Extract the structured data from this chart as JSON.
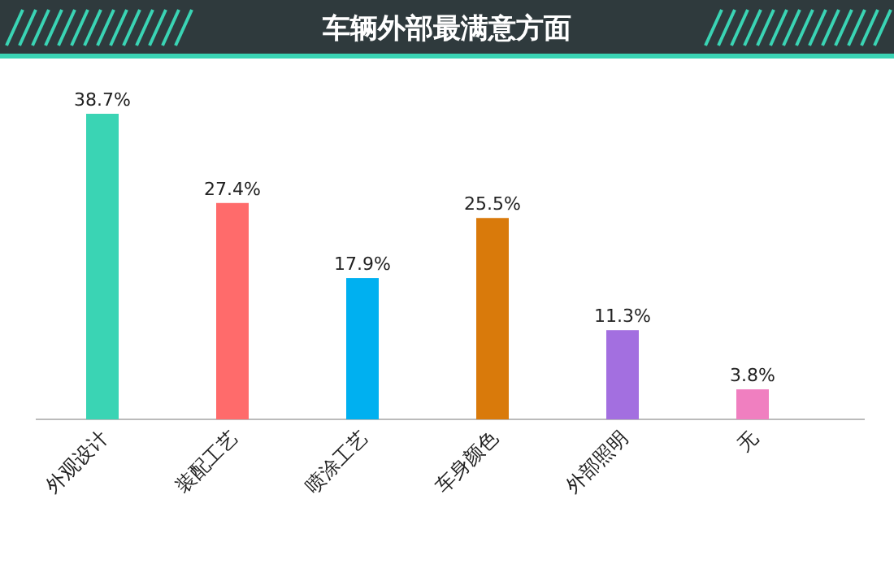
{
  "chart_data": {
    "type": "bar",
    "title": "车辆外部最满意方面",
    "categories": [
      "外观设计",
      "装配工艺",
      "喷涂工艺",
      "车身颜色",
      "外部照明",
      "无"
    ],
    "values": [
      38.7,
      27.4,
      17.9,
      25.5,
      11.3,
      3.8
    ],
    "colors": [
      "#3ad4b4",
      "#ff6b6b",
      "#00b0f0",
      "#d97a0b",
      "#a36fe0",
      "#f07fc0"
    ],
    "value_labels": [
      "38.7%",
      "27.4%",
      "17.9%",
      "25.5%",
      "11.3%",
      "3.8%"
    ]
  }
}
